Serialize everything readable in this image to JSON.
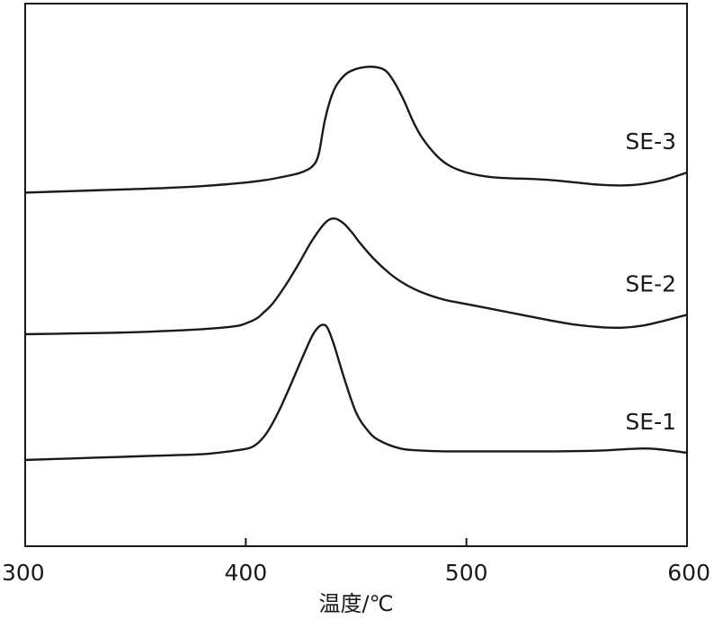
{
  "chart_data": {
    "type": "line",
    "title": "",
    "xlabel": "温度/℃",
    "ylabel": "",
    "xlim": [
      300,
      600
    ],
    "xticks": [
      300,
      400,
      500,
      600
    ],
    "yticks_shown": false,
    "grid": false,
    "legend": "none",
    "note": "Curves are vertically offset; series names are printed next to each curve.",
    "line_color": "#1a1a1a",
    "series": [
      {
        "name": "SE-3",
        "offset": 2,
        "x": [
          300,
          320,
          340,
          360,
          380,
          400,
          410,
          420,
          425,
          430,
          433,
          436,
          440,
          445,
          450,
          455,
          460,
          464,
          468,
          472,
          476,
          480,
          486,
          492,
          500,
          510,
          520,
          530,
          540,
          550,
          560,
          570,
          580,
          590,
          600
        ],
        "y": [
          0.02,
          0.04,
          0.06,
          0.08,
          0.11,
          0.16,
          0.2,
          0.26,
          0.3,
          0.38,
          0.55,
          1.05,
          1.45,
          1.66,
          1.74,
          1.77,
          1.76,
          1.7,
          1.52,
          1.28,
          1.0,
          0.78,
          0.55,
          0.4,
          0.3,
          0.24,
          0.22,
          0.21,
          0.19,
          0.16,
          0.13,
          0.12,
          0.14,
          0.2,
          0.3
        ]
      },
      {
        "name": "SE-2",
        "offset": 1,
        "x": [
          300,
          320,
          340,
          360,
          380,
          395,
          400,
          405,
          408,
          412,
          418,
          424,
          430,
          436,
          440,
          444,
          448,
          452,
          458,
          465,
          472,
          480,
          490,
          500,
          510,
          520,
          530,
          540,
          550,
          560,
          570,
          580,
          590,
          600
        ],
        "y": [
          0.0,
          0.01,
          0.02,
          0.04,
          0.07,
          0.11,
          0.15,
          0.22,
          0.3,
          0.42,
          0.68,
          0.98,
          1.3,
          1.55,
          1.61,
          1.55,
          1.42,
          1.26,
          1.05,
          0.85,
          0.7,
          0.58,
          0.48,
          0.42,
          0.36,
          0.3,
          0.24,
          0.18,
          0.13,
          0.1,
          0.09,
          0.12,
          0.19,
          0.27
        ]
      },
      {
        "name": "SE-1",
        "offset": 0,
        "x": [
          300,
          320,
          340,
          360,
          380,
          395,
          402,
          406,
          410,
          415,
          420,
          425,
          430,
          433,
          435,
          437,
          440,
          445,
          450,
          455,
          460,
          470,
          480,
          490,
          500,
          520,
          540,
          560,
          580,
          590,
          600
        ],
        "y": [
          0.0,
          0.02,
          0.04,
          0.06,
          0.08,
          0.13,
          0.17,
          0.25,
          0.4,
          0.68,
          1.02,
          1.38,
          1.72,
          1.85,
          1.88,
          1.84,
          1.6,
          1.1,
          0.66,
          0.42,
          0.28,
          0.16,
          0.13,
          0.12,
          0.12,
          0.12,
          0.12,
          0.13,
          0.16,
          0.14,
          0.1
        ]
      }
    ]
  }
}
